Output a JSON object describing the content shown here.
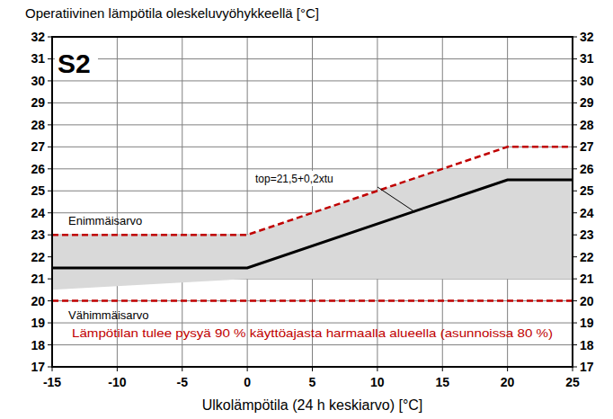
{
  "chart_data": {
    "type": "line",
    "title": "Operatiivinen lämpötila oleskeluvyöhykkeellä [°C]",
    "x_label": "Ulkolämpötila (24 h keskiarvo) [°C]",
    "xlim": [
      -15,
      25
    ],
    "xticks": [
      -15,
      -10,
      -5,
      0,
      5,
      10,
      15,
      20,
      25
    ],
    "ylim": [
      17,
      32
    ],
    "yticks": [
      17,
      18,
      19,
      20,
      21,
      22,
      23,
      24,
      25,
      26,
      27,
      28,
      29,
      30,
      31,
      32
    ],
    "grid": true,
    "series": [
      {
        "type": "area",
        "color": "#d9d9d9",
        "x": [
          -15,
          0,
          15,
          25
        ],
        "values": [
          23,
          23,
          26,
          26
        ],
        "lower": [
          20.5,
          21,
          21,
          21
        ]
      },
      {
        "type": "line",
        "color": "#000000",
        "line_style": "solid",
        "x": [
          -15,
          0,
          20,
          25
        ],
        "values": [
          21.5,
          21.5,
          25.5,
          25.5
        ]
      },
      {
        "type": "line",
        "color": "#c00000",
        "line_style": "dashed",
        "x": [
          -15,
          0,
          20,
          25
        ],
        "values": [
          23,
          23,
          27,
          27
        ]
      },
      {
        "type": "line",
        "color": "#c00000",
        "line_style": "dashed",
        "x": [
          -15,
          25
        ],
        "values": [
          20,
          20
        ]
      }
    ],
    "annotations": [
      "S2",
      "Enimmäisarvo",
      "Vähimmäisarvo",
      "Lämpötilan tulee pysyä 90 % käyttöajasta harmaalla alueella (asunnoissa 80 %)",
      "top=21,5+0,2xtu"
    ]
  }
}
